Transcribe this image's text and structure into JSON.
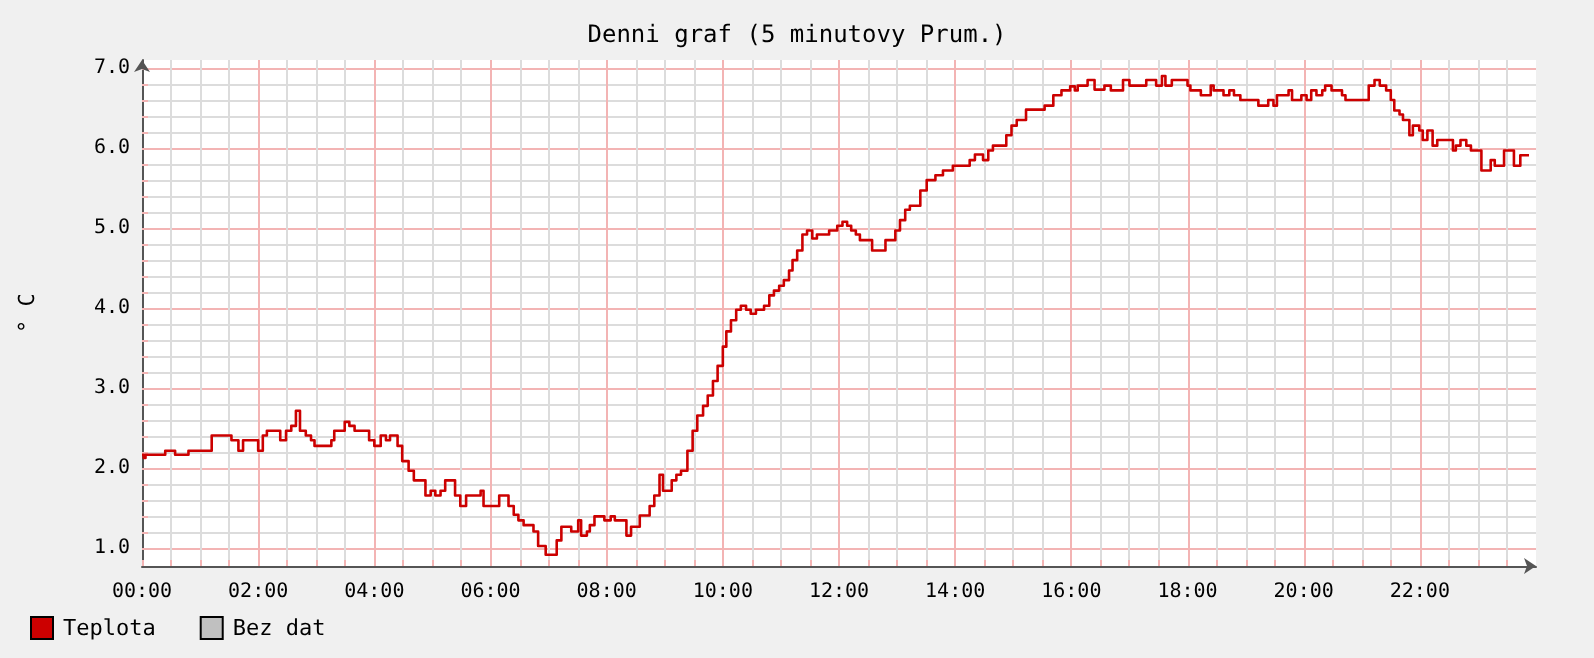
{
  "chart_data": {
    "type": "step",
    "title": "Denni graf (5 minutovy Prum.)",
    "ylabel": "° C",
    "xlim": [
      0,
      24
    ],
    "ylim": [
      0.78,
      7.1
    ],
    "xticks": [
      {
        "value": 0,
        "label": "00:00"
      },
      {
        "value": 0.5,
        "label": null
      },
      {
        "value": 1,
        "label": null
      },
      {
        "value": 1.5,
        "label": null
      },
      {
        "value": 2,
        "label": "02:00"
      },
      {
        "value": 2.5,
        "label": null
      },
      {
        "value": 3,
        "label": null
      },
      {
        "value": 3.5,
        "label": null
      },
      {
        "value": 4,
        "label": "04:00"
      },
      {
        "value": 4.5,
        "label": null
      },
      {
        "value": 5,
        "label": null
      },
      {
        "value": 5.5,
        "label": null
      },
      {
        "value": 6,
        "label": "06:00"
      },
      {
        "value": 6.5,
        "label": null
      },
      {
        "value": 7,
        "label": null
      },
      {
        "value": 7.5,
        "label": null
      },
      {
        "value": 8,
        "label": "08:00"
      },
      {
        "value": 8.5,
        "label": null
      },
      {
        "value": 9,
        "label": null
      },
      {
        "value": 9.5,
        "label": null
      },
      {
        "value": 10,
        "label": "10:00"
      },
      {
        "value": 10.5,
        "label": null
      },
      {
        "value": 11,
        "label": null
      },
      {
        "value": 11.5,
        "label": null
      },
      {
        "value": 12,
        "label": "12:00"
      },
      {
        "value": 12.5,
        "label": null
      },
      {
        "value": 13,
        "label": null
      },
      {
        "value": 13.5,
        "label": null
      },
      {
        "value": 14,
        "label": "14:00"
      },
      {
        "value": 14.5,
        "label": null
      },
      {
        "value": 15,
        "label": null
      },
      {
        "value": 15.5,
        "label": null
      },
      {
        "value": 16,
        "label": "16:00"
      },
      {
        "value": 16.5,
        "label": null
      },
      {
        "value": 17,
        "label": null
      },
      {
        "value": 17.5,
        "label": null
      },
      {
        "value": 18,
        "label": "18:00"
      },
      {
        "value": 18.5,
        "label": null
      },
      {
        "value": 19,
        "label": null
      },
      {
        "value": 19.5,
        "label": null
      },
      {
        "value": 20,
        "label": "20:00"
      },
      {
        "value": 20.5,
        "label": null
      },
      {
        "value": 21,
        "label": null
      },
      {
        "value": 21.5,
        "label": null
      },
      {
        "value": 22,
        "label": "22:00"
      },
      {
        "value": 22.5,
        "label": null
      },
      {
        "value": 23,
        "label": null
      },
      {
        "value": 23.5,
        "label": null
      }
    ],
    "yticks": [
      {
        "value": 1,
        "label": "1.0"
      },
      {
        "value": 1.2,
        "label": null
      },
      {
        "value": 1.4,
        "label": null
      },
      {
        "value": 1.6,
        "label": null
      },
      {
        "value": 1.8,
        "label": null
      },
      {
        "value": 2,
        "label": "2.0"
      },
      {
        "value": 2.2,
        "label": null
      },
      {
        "value": 2.4,
        "label": null
      },
      {
        "value": 2.6,
        "label": null
      },
      {
        "value": 2.8,
        "label": null
      },
      {
        "value": 3,
        "label": "3.0"
      },
      {
        "value": 3.2,
        "label": null
      },
      {
        "value": 3.4,
        "label": null
      },
      {
        "value": 3.6,
        "label": null
      },
      {
        "value": 3.8,
        "label": null
      },
      {
        "value": 4,
        "label": "4.0"
      },
      {
        "value": 4.2,
        "label": null
      },
      {
        "value": 4.4,
        "label": null
      },
      {
        "value": 4.6,
        "label": null
      },
      {
        "value": 4.8,
        "label": null
      },
      {
        "value": 5,
        "label": "5.0"
      },
      {
        "value": 5.2,
        "label": null
      },
      {
        "value": 5.4,
        "label": null
      },
      {
        "value": 5.6,
        "label": null
      },
      {
        "value": 5.8,
        "label": null
      },
      {
        "value": 6,
        "label": "6.0"
      },
      {
        "value": 6.2,
        "label": null
      },
      {
        "value": 6.4,
        "label": null
      },
      {
        "value": 6.6,
        "label": null
      },
      {
        "value": 6.8,
        "label": null
      },
      {
        "value": 7,
        "label": "7.0"
      }
    ],
    "grid": true,
    "legend": "bottom left",
    "marker": "none",
    "series": [
      {
        "name": "Teplota",
        "color": "#cc0000",
        "x": [
          0,
          0.03,
          0.06,
          0.4,
          0.57,
          0.8,
          1.2,
          1.54,
          1.66,
          1.74,
          2,
          2.08,
          2.15,
          2.38,
          2.48,
          2.57,
          2.65,
          2.72,
          2.82,
          2.91,
          2.97,
          3.26,
          3.31,
          3.49,
          3.57,
          3.66,
          3.91,
          4,
          4.11,
          4.2,
          4.27,
          4.4,
          4.48,
          4.59,
          4.68,
          4.88,
          4.97,
          5.05,
          5.14,
          5.22,
          5.39,
          5.48,
          5.58,
          5.83,
          5.88,
          6.15,
          6.31,
          6.4,
          6.48,
          6.57,
          6.74,
          6.82,
          6.95,
          7.14,
          7.22,
          7.39,
          7.51,
          7.56,
          7.66,
          7.71,
          7.79,
          7.96,
          8.07,
          8.14,
          8.34,
          8.42,
          8.57,
          8.74,
          8.82,
          8.91,
          8.97,
          9.12,
          9.2,
          9.28,
          9.39,
          9.48,
          9.56,
          9.66,
          9.74,
          9.83,
          9.91,
          10,
          10.06,
          10.14,
          10.23,
          10.31,
          10.4,
          10.48,
          10.57,
          10.71,
          10.8,
          10.88,
          10.97,
          11.05,
          11.14,
          11.2,
          11.28,
          11.37,
          11.45,
          11.54,
          11.62,
          11.83,
          11.97,
          12.06,
          12.14,
          12.21,
          12.29,
          12.36,
          12.57,
          12.8,
          12.97,
          13.05,
          13.14,
          13.22,
          13.4,
          13.51,
          13.66,
          13.79,
          13.96,
          14.25,
          14.34,
          14.48,
          14.57,
          14.65,
          14.88,
          14.97,
          15.06,
          15.22,
          15.54,
          15.69,
          15.83,
          15.98,
          16.06,
          16.11,
          16.28,
          16.4,
          16.57,
          16.68,
          16.89,
          17,
          17.29,
          17.46,
          17.56,
          17.62,
          17.73,
          18,
          18.05,
          18.23,
          18.4,
          18.45,
          18.62,
          18.72,
          18.8,
          18.91,
          19.22,
          19.39,
          19.48,
          19.54,
          19.74,
          19.8,
          19.96,
          20.05,
          20.13,
          20.22,
          20.32,
          20.37,
          20.48,
          20.66,
          20.72,
          21.12,
          21.22,
          21.31,
          21.42,
          21.5,
          21.56,
          21.65,
          21.71,
          21.82,
          21.88,
          21.99,
          22.05,
          22.13,
          22.22,
          22.3,
          22.57,
          22.62,
          22.7,
          22.8,
          22.88,
          23.06,
          23.22,
          23.29,
          23.45,
          23.62,
          23.73,
          23.88
        ],
        "values": [
          2.17,
          2.13,
          2.17,
          2.22,
          2.17,
          2.22,
          2.41,
          2.35,
          2.22,
          2.35,
          2.22,
          2.41,
          2.47,
          2.35,
          2.47,
          2.53,
          2.72,
          2.47,
          2.41,
          2.35,
          2.28,
          2.35,
          2.47,
          2.58,
          2.53,
          2.47,
          2.35,
          2.28,
          2.41,
          2.35,
          2.41,
          2.28,
          2.09,
          1.97,
          1.85,
          1.66,
          1.72,
          1.66,
          1.72,
          1.85,
          1.66,
          1.53,
          1.66,
          1.72,
          1.53,
          1.66,
          1.53,
          1.42,
          1.35,
          1.29,
          1.21,
          1.03,
          0.92,
          1.1,
          1.27,
          1.21,
          1.35,
          1.16,
          1.21,
          1.29,
          1.4,
          1.35,
          1.4,
          1.35,
          1.16,
          1.27,
          1.41,
          1.53,
          1.66,
          1.92,
          1.72,
          1.85,
          1.92,
          1.97,
          2.22,
          2.47,
          2.66,
          2.78,
          2.91,
          3.09,
          3.28,
          3.52,
          3.71,
          3.85,
          3.98,
          4.03,
          3.98,
          3.93,
          3.98,
          4.03,
          4.16,
          4.22,
          4.28,
          4.35,
          4.47,
          4.6,
          4.72,
          4.92,
          4.97,
          4.87,
          4.92,
          4.97,
          5.03,
          5.08,
          5.03,
          4.97,
          4.92,
          4.85,
          4.72,
          4.85,
          4.97,
          5.1,
          5.23,
          5.28,
          5.47,
          5.6,
          5.66,
          5.72,
          5.78,
          5.85,
          5.92,
          5.85,
          5.97,
          6.03,
          6.16,
          6.28,
          6.35,
          6.48,
          6.53,
          6.66,
          6.72,
          6.77,
          6.72,
          6.78,
          6.85,
          6.73,
          6.78,
          6.72,
          6.85,
          6.78,
          6.85,
          6.78,
          6.9,
          6.78,
          6.85,
          6.78,
          6.72,
          6.66,
          6.78,
          6.72,
          6.66,
          6.72,
          6.66,
          6.6,
          6.53,
          6.6,
          6.53,
          6.66,
          6.72,
          6.6,
          6.66,
          6.6,
          6.72,
          6.66,
          6.72,
          6.78,
          6.72,
          6.66,
          6.6,
          6.78,
          6.85,
          6.78,
          6.72,
          6.6,
          6.47,
          6.42,
          6.35,
          6.16,
          6.28,
          6.22,
          6.1,
          6.22,
          6.03,
          6.1,
          5.97,
          6.03,
          6.1,
          6.03,
          5.97,
          5.72,
          5.85,
          5.78,
          5.97,
          5.78,
          5.91,
          5.91
        ]
      },
      {
        "name": "Bez dat",
        "color": "#c0c0c0"
      }
    ]
  }
}
